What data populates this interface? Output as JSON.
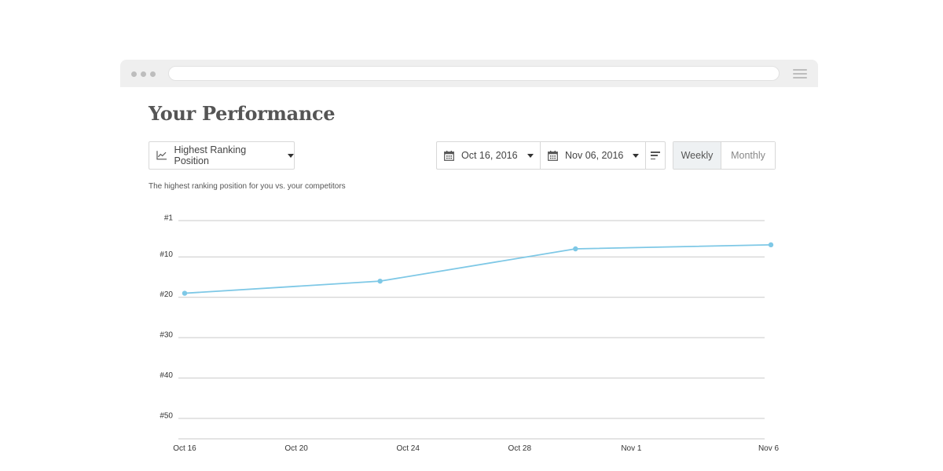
{
  "page_title": "Your Performance",
  "metric_dropdown": {
    "label": "Highest Ranking Position",
    "icon": "line-chart-icon"
  },
  "date_range": {
    "start": "Oct 16, 2016",
    "end": "Nov 06, 2016"
  },
  "period_toggle": {
    "weekly": "Weekly",
    "monthly": "Monthly",
    "selected": "weekly"
  },
  "subtitle": "The highest ranking position for you vs. your competitors",
  "colors": {
    "line": "#7ec8e6",
    "grid": "#c9c9c9"
  },
  "chart_data": {
    "type": "line",
    "title": "",
    "xlabel": "",
    "ylabel": "",
    "y_inverted": true,
    "y_ticks": [
      1,
      10,
      20,
      30,
      40,
      50
    ],
    "y_tick_labels": [
      "#1",
      "#10",
      "#20",
      "#30",
      "#40",
      "#50"
    ],
    "x_ticks": [
      "Oct 16",
      "Oct 20",
      "Oct 24",
      "Oct 28",
      "Nov 1",
      "Nov 6"
    ],
    "x_tick_dates": [
      "2016-10-16",
      "2016-10-20",
      "2016-10-24",
      "2016-10-28",
      "2016-11-01",
      "2016-11-06"
    ],
    "x_range": [
      "2016-10-16",
      "2016-11-06"
    ],
    "grid": true,
    "series": [
      {
        "points": [
          {
            "x": "2016-10-16",
            "y": 19
          },
          {
            "x": "2016-10-23",
            "y": 16
          },
          {
            "x": "2016-10-30",
            "y": 8
          },
          {
            "x": "2016-11-06",
            "y": 7
          }
        ]
      }
    ]
  }
}
